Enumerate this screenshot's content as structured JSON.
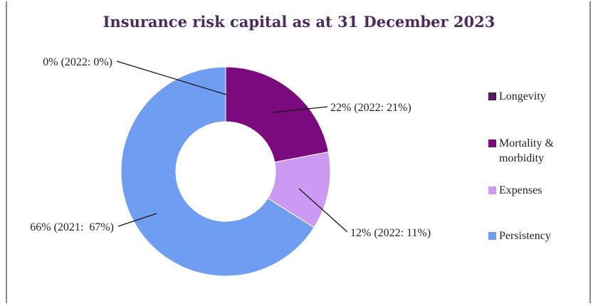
{
  "chart_data": {
    "type": "pie",
    "title": "Insurance risk capital as at 31 December 2023",
    "slices": [
      {
        "name": "Longevity",
        "value": 0,
        "label": "0% (2022: 0%)",
        "color": "#5b1a6e"
      },
      {
        "name": "Mortality & morbidity",
        "value": 22,
        "label": "22% (2022: 21%)",
        "color": "#7a0a7e"
      },
      {
        "name": "Expenses",
        "value": 12,
        "label": "12% (2022: 11%)",
        "color": "#cc9af2"
      },
      {
        "name": "Persistency",
        "value": 66,
        "label": "66% (2021:  67%)",
        "color": "#6f9df1"
      }
    ],
    "legend": {
      "position": "right",
      "items": [
        "Longevity",
        "Mortality & morbidity",
        "Expenses",
        "Persistency"
      ]
    }
  }
}
